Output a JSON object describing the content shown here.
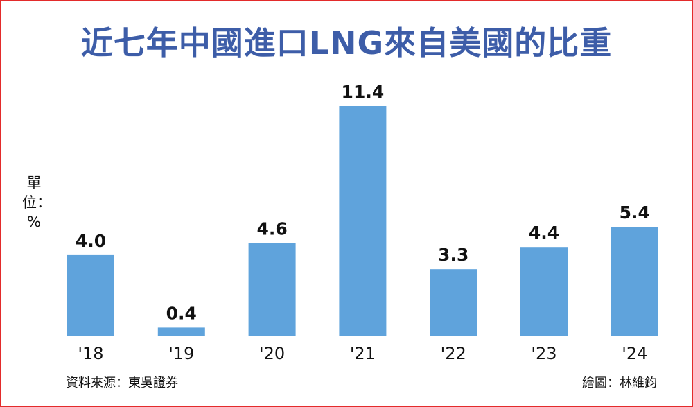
{
  "title": "近七年中國進口LNG來自美國的比重",
  "unit_label": "單位：%",
  "source": "資料來源：東吳證券",
  "credit": "繪圖：林維鈞",
  "colors": {
    "bar": "#5fa3dc",
    "title": "#3d5da8",
    "frame": "#e32b2b",
    "text": "#111111"
  },
  "chart_data": {
    "type": "bar",
    "title": "近七年中國進口LNG來自美國的比重",
    "xlabel": "",
    "ylabel": "單位：%",
    "categories": [
      "'18",
      "'19",
      "'20",
      "'21",
      "'22",
      "'23",
      "'24"
    ],
    "values": [
      4.0,
      0.4,
      4.6,
      11.4,
      3.3,
      4.4,
      5.4
    ],
    "data_labels": [
      "4.0",
      "0.4",
      "4.6",
      "11.4",
      "3.3",
      "4.4",
      "5.4"
    ],
    "ylim": [
      0,
      11.4
    ],
    "grid": false,
    "legend": "none"
  }
}
